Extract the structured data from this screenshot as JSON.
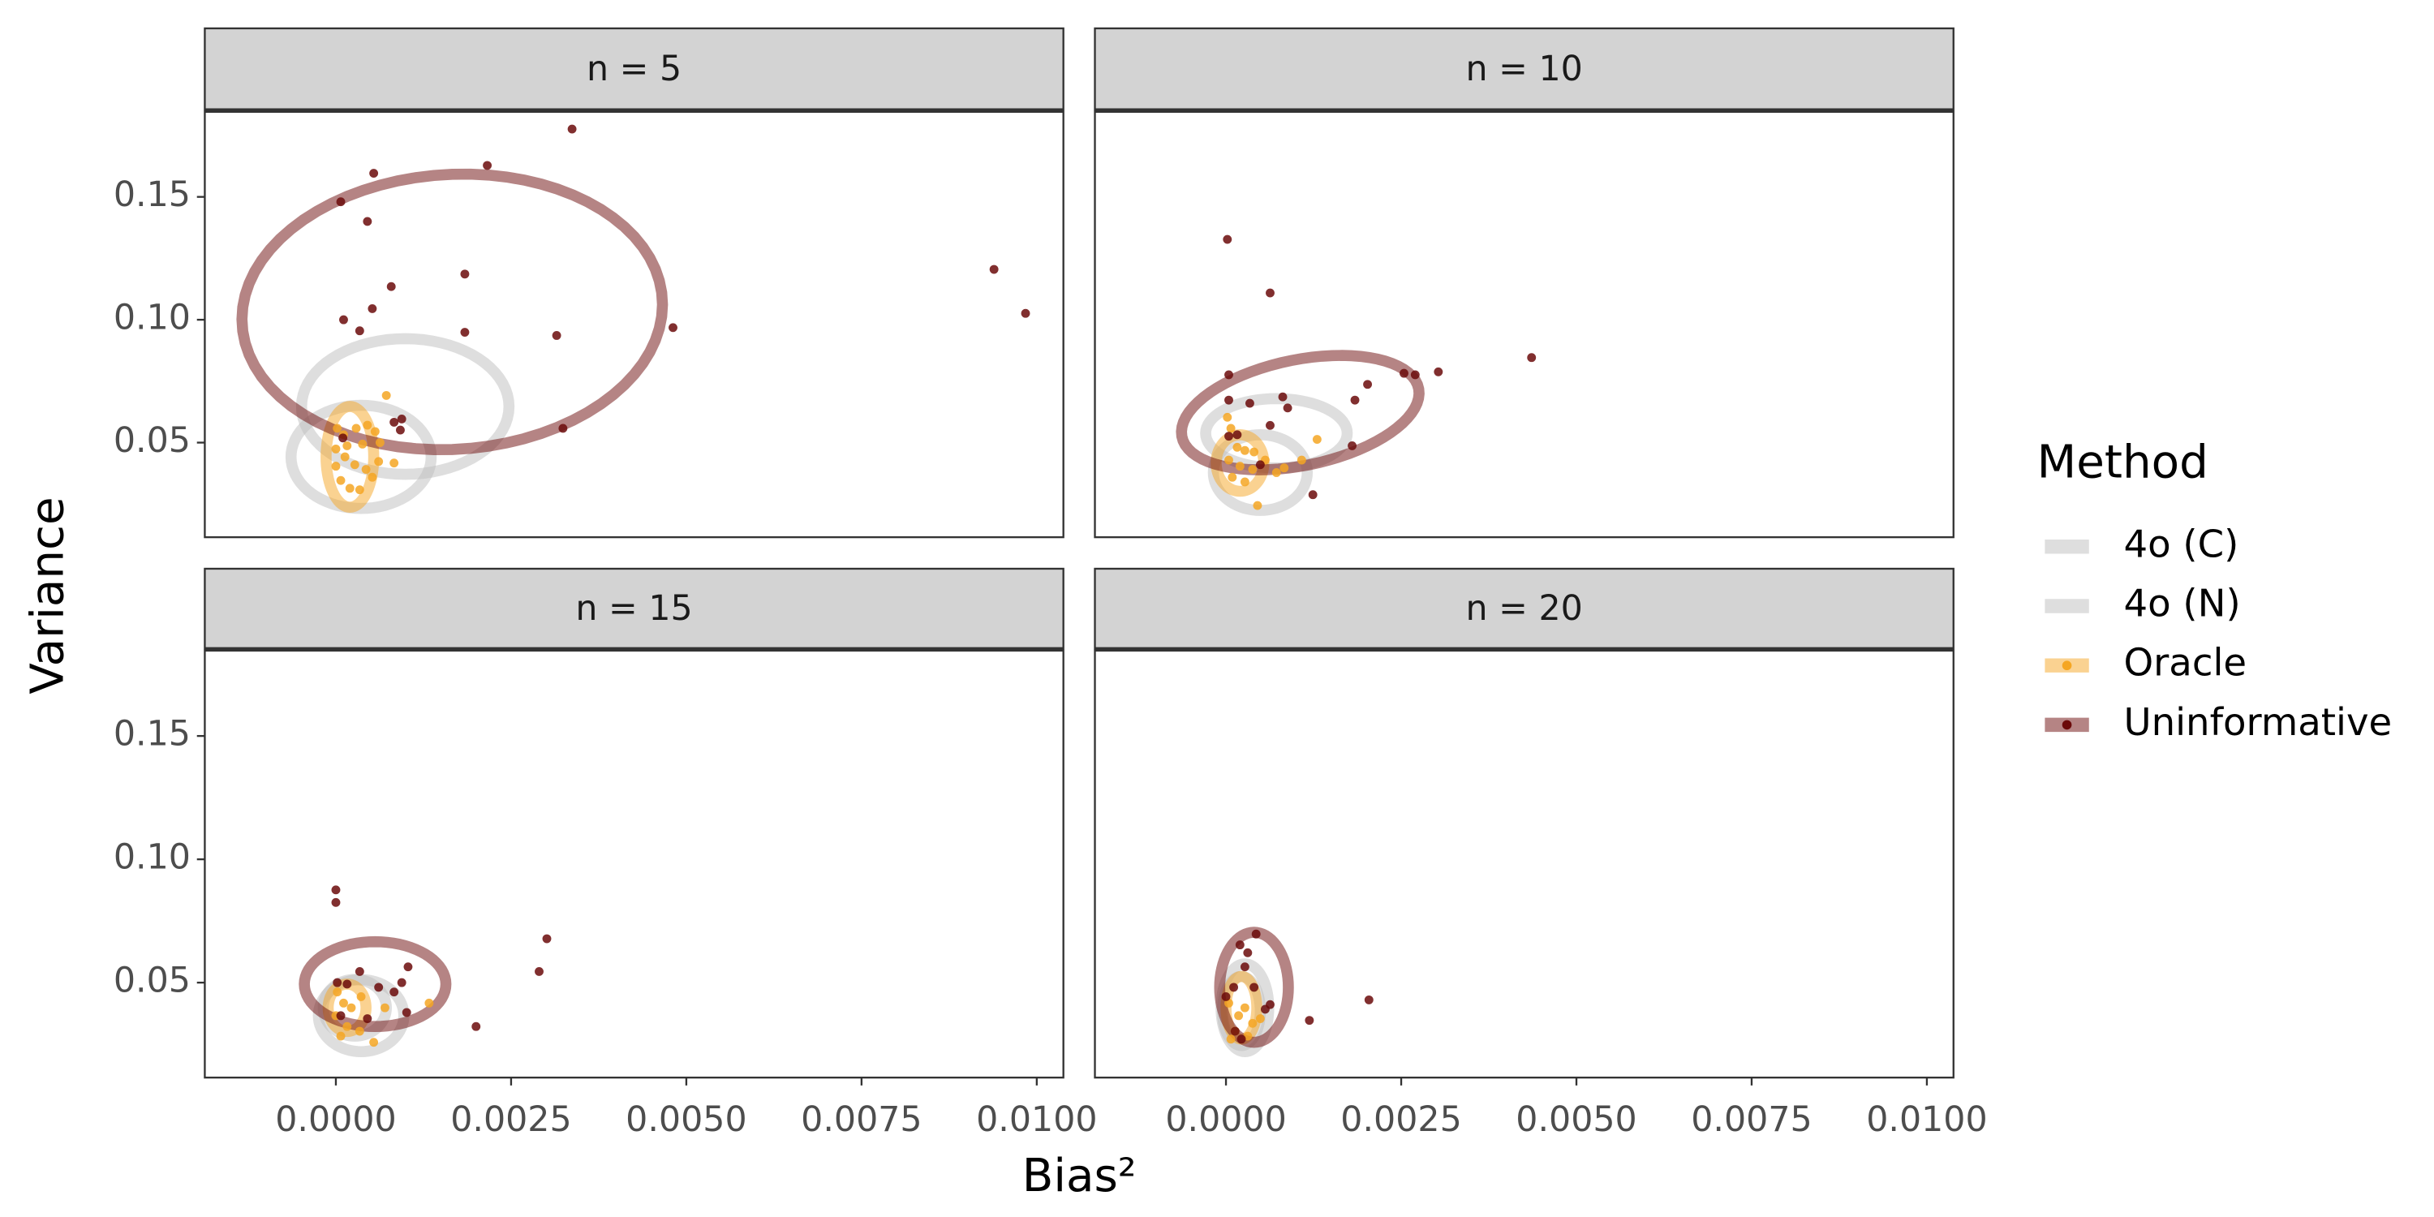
{
  "xlabel": "Bias²",
  "ylabel": "Variance",
  "legend": {
    "title": "Method",
    "entries": [
      {
        "name": "4o (C)",
        "color": "#bdbdbd"
      },
      {
        "name": "4o (N)",
        "color": "#bdbdbd"
      },
      {
        "name": "Oracle",
        "color": "#f5a623"
      },
      {
        "name": "Uninformative",
        "color": "#6b0a0a"
      }
    ]
  },
  "chart_data": [
    {
      "type": "scatter",
      "title": "n = 5",
      "xlim": [
        -0.00187,
        0.01038
      ],
      "ylim": [
        0.0115,
        0.1846
      ],
      "yticks": [
        0.05,
        {
          "value": 0.1,
          "label": "0.10"
        },
        0.15
      ],
      "series": [
        {
          "ellipse": {
            "center": [
              0.00099,
              0.0647
            ],
            "axis1": [
              0.00148,
              0
            ],
            "axis2": [
              0,
              0.0276
            ]
          }
        },
        {
          "ellipse": {
            "center": [
              0.00036,
              0.0442
            ],
            "axis1": [
              0.001,
              0
            ],
            "axis2": [
              0,
              0.021
            ]
          }
        },
        {
          "x": [
            0.00072,
            2e-05,
            0.00011,
            0.00029,
            0.00045,
            0.00056,
            0,
            0.00013,
            0.00027,
            0.00043,
            0.00061,
            0.00083,
            7e-05,
            0.0002,
            0.00034,
            0.00052,
            0,
            0.00016,
            0.00038,
            0.00063
          ],
          "y": [
            0.0692,
            0.0558,
            0.0532,
            0.0558,
            0.0571,
            0.0545,
            0.0474,
            0.0442,
            0.041,
            0.0391,
            0.0423,
            0.0417,
            0.0346,
            0.0314,
            0.0308,
            0.0359,
            0.0404,
            0.0487,
            0.0494,
            0.05
          ],
          "ellipse": {
            "center": [
              0.0002,
              0.0442
            ],
            "axis1": [
              0.00034,
              0
            ],
            "axis2": [
              0,
              0.0205
            ]
          }
        },
        {
          "x": [
            0.00337,
            0.00054,
            0.00216,
            7e-05,
            0.00045,
            0.00184,
            0.00939,
            0.00984,
            0.00079,
            0.00052,
            0.00011,
            0.00034,
            0.00184,
            0.00315,
            0.00481,
            0.00094,
            0.00083,
            0.00092,
            0.00324,
            0.0001
          ],
          "y": [
            0.1776,
            0.1596,
            0.1628,
            0.148,
            0.14,
            0.1186,
            0.1205,
            0.1026,
            0.1135,
            0.1045,
            0.1,
            0.0955,
            0.0949,
            0.0936,
            0.0968,
            0.0596,
            0.0583,
            0.0551,
            0.0558,
            0.0519
          ],
          "ellipse": {
            "center": [
              0.00166,
              0.1032
            ],
            "axis1": [
              0.003,
              0.003
            ],
            "axis2": [
              0,
              0.056
            ]
          }
        }
      ]
    },
    {
      "type": "scatter",
      "title": "n = 10",
      "xlim": [
        -0.00187,
        0.01038
      ],
      "ylim": [
        0.0115,
        0.1846
      ],
      "series": [
        {
          "ellipse": {
            "center": [
              0.00072,
              0.0538
            ],
            "axis1": [
              0.00101,
              0
            ],
            "axis2": [
              0,
              0.0141
            ]
          }
        },
        {
          "ellipse": {
            "center": [
              0.00049,
              0.0378
            ],
            "axis1": [
              0.00067,
              0
            ],
            "axis2": [
              0,
              0.0154
            ]
          }
        },
        {
          "x": [
            2e-05,
            7e-05,
            0.0013,
            0.00016,
            0.00027,
            0.0004,
            4e-05,
            0.0002,
            0.00038,
            0.00056,
            0.00072,
            9e-05,
            0.00027,
            0.00045,
            0.00083,
            0.00108
          ],
          "y": [
            0.0603,
            0.0558,
            0.0513,
            0.0481,
            0.0468,
            0.0462,
            0.0429,
            0.0404,
            0.0391,
            0.0429,
            0.0378,
            0.0359,
            0.034,
            0.0244,
            0.0397,
            0.0429
          ],
          "ellipse": {
            "center": [
              0.0002,
              0.0417
            ],
            "axis1": [
              0.00034,
              0
            ],
            "axis2": [
              0,
              0.0115
            ]
          }
        },
        {
          "x": [
            2e-05,
            0.00063,
            0.00436,
            0.00303,
            0.00254,
            0.0027,
            4e-05,
            0.00202,
            0.00184,
            0.00081,
            4e-05,
            0.00034,
            0.00088,
            0.00063,
            0.0018,
            4e-05,
            0.00016,
            0.00049,
            0.00124
          ],
          "y": [
            0.1327,
            0.1109,
            0.0846,
            0.0788,
            0.0782,
            0.0776,
            0.0776,
            0.0737,
            0.0673,
            0.0686,
            0.0673,
            0.066,
            0.0641,
            0.057,
            0.0487,
            0.0526,
            0.0532,
            0.041,
            0.0288
          ],
          "ellipse": {
            "center": [
              0.00106,
              0.0622
            ],
            "axis1": [
              0.00169,
              0.0096
            ],
            "axis2": [
              -0.00013,
              0.0212
            ]
          }
        }
      ]
    },
    {
      "type": "scatter",
      "title": "n = 15",
      "xlim": [
        -0.00187,
        0.01038
      ],
      "ylim": [
        0.0115,
        0.1846
      ],
      "yticks": [
        0.05,
        {
          "value": 0.1,
          "label": "0.10"
        },
        0.15
      ],
      "xticks": [
        {
          "value": 0,
          "label": "0.0000"
        },
        {
          "value": 0.0025,
          "label": "0.0025"
        },
        {
          "value": 0.005,
          "label": "0.0050"
        },
        {
          "value": 0.0075,
          "label": "0.0075"
        },
        {
          "value": 0.01,
          "label": "0.0100"
        }
      ],
      "series": [
        {
          "ellipse": {
            "center": [
              0.00036,
              0.0366
            ],
            "axis1": [
              0.00061,
              0
            ],
            "axis2": [
              0,
              0.0146
            ]
          }
        },
        {
          "ellipse": {
            "center": [
              0.00027,
              0.0398
            ],
            "axis1": [
              0.00045,
              0
            ],
            "axis2": [
              0,
              0.0115
            ]
          }
        },
        {
          "x": [
            2e-05,
            0.00011,
            0.00022,
            0,
            0.00016,
            0.00034,
            0.00054,
            0.0007,
            0.00133,
            0.00036,
            7e-05
          ],
          "y": [
            0.0462,
            0.0417,
            0.0398,
            0.0366,
            0.0322,
            0.0303,
            0.0258,
            0.0398,
            0.0417,
            0.0443,
            0.0283
          ],
          "ellipse": {
            "center": [
              0.00016,
              0.0398
            ],
            "axis1": [
              0.00027,
              0
            ],
            "axis2": [
              0,
              0.0096
            ]
          }
        },
        {
          "x": [
            0,
            0,
            0.00301,
            0.0029,
            0.002,
            0.00103,
            0.00083,
            0.00094,
            0.00034,
            2e-05,
            0.00016,
            0.00061,
            0.00045,
            0.00101,
            7e-05
          ],
          "y": [
            0.0876,
            0.0825,
            0.0678,
            0.0545,
            0.0322,
            0.0564,
            0.0462,
            0.05,
            0.0545,
            0.05,
            0.0494,
            0.0481,
            0.0354,
            0.0379,
            0.0366
          ],
          "ellipse": {
            "center": [
              0.00056,
              0.0494
            ],
            "axis1": [
              0.00101,
              0
            ],
            "axis2": [
              0,
              0.0172
            ]
          }
        }
      ]
    },
    {
      "type": "scatter",
      "title": "n = 20",
      "xlim": [
        -0.00187,
        0.01038
      ],
      "ylim": [
        0.0115,
        0.1846
      ],
      "xticks": [
        {
          "value": 0,
          "label": "0.0000"
        },
        {
          "value": 0.0025,
          "label": "0.0025"
        },
        {
          "value": 0.005,
          "label": "0.0050"
        },
        {
          "value": 0.0075,
          "label": "0.0075"
        },
        {
          "value": 0.01,
          "label": "0.0100"
        }
      ],
      "series": [
        {
          "ellipse": {
            "center": [
              0.00027,
              0.0398
            ],
            "axis1": [
              0.00034,
              0
            ],
            "axis2": [
              0,
              0.0178
            ]
          }
        },
        {
          "ellipse": {
            "center": [
              0.00022,
              0.0385
            ],
            "axis1": [
              0.00027,
              0
            ],
            "axis2": [
              0,
              0.014
            ]
          }
        },
        {
          "x": [
            4e-05,
            0.00018,
            0.00027,
            0.00013,
            0.00038,
            0.00049,
            0.00031,
            7e-05
          ],
          "y": [
            0.0417,
            0.0366,
            0.0398,
            0.0303,
            0.0335,
            0.0354,
            0.0283,
            0.0271
          ],
          "ellipse": {
            "center": [
              0.00022,
              0.0398
            ],
            "axis1": [
              0.00022,
              0
            ],
            "axis2": [
              0,
              0.0127
            ]
          }
        },
        {
          "x": [
            0.00043,
            0.0002,
            0.00031,
            0.00204,
            0.00119,
            0,
            0.00011,
            0.0004,
            0.00063,
            0.00056,
            0.00013,
            0.00022,
            0.00027
          ],
          "y": [
            0.0697,
            0.0653,
            0.0621,
            0.043,
            0.0347,
            0.0443,
            0.0481,
            0.0481,
            0.0411,
            0.0392,
            0.0303,
            0.0271,
            0.0564
          ],
          "ellipse": {
            "center": [
              0.0004,
              0.0481
            ],
            "axis1": [
              0.00049,
              0
            ],
            "axis2": [
              0,
              0.0223
            ]
          }
        }
      ]
    }
  ]
}
